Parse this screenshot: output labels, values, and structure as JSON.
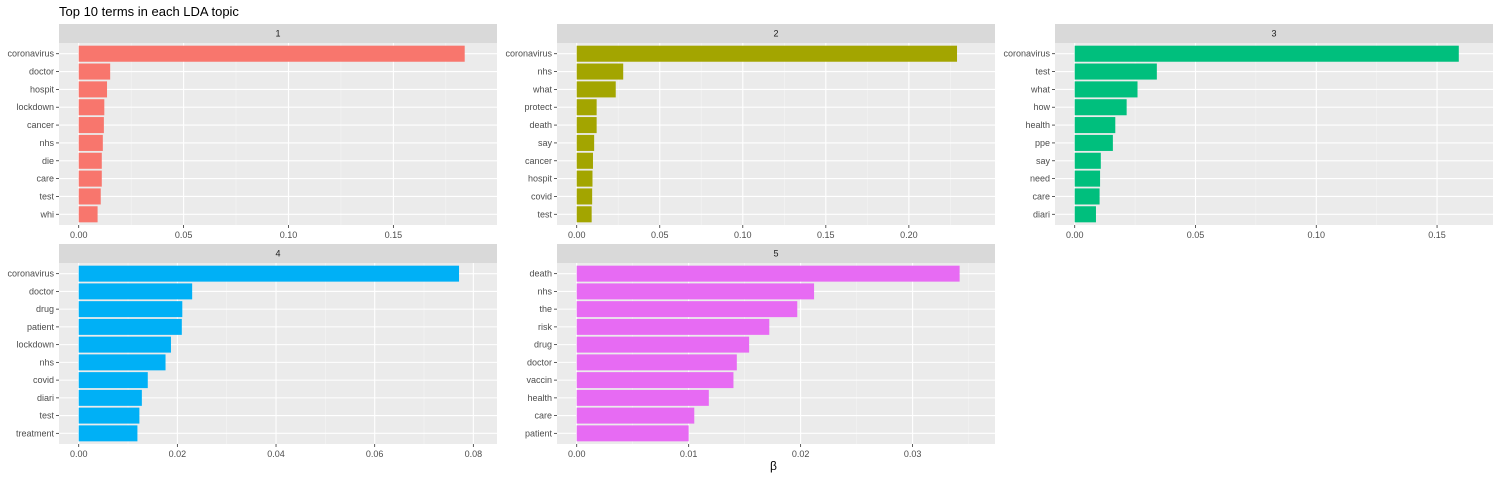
{
  "title": "Top 10 terms in each LDA topic",
  "xlabel": "β",
  "chart_data": [
    {
      "type": "bar",
      "facet": "1",
      "color": "#F8766D",
      "xlim": [
        0,
        0.19
      ],
      "xticks": [
        0.0,
        0.05,
        0.1,
        0.15
      ],
      "xtick_labels": [
        "0.00",
        "0.05",
        "0.10",
        "0.15"
      ],
      "categories": [
        "coronavirus",
        "doctor",
        "hospit",
        "lockdown",
        "cancer",
        "nhs",
        "die",
        "care",
        "test",
        "whi"
      ],
      "values": [
        0.184,
        0.015,
        0.0135,
        0.0122,
        0.012,
        0.0115,
        0.011,
        0.011,
        0.0105,
        0.009
      ]
    },
    {
      "type": "bar",
      "facet": "2",
      "color": "#A3A500",
      "xlim": [
        0,
        0.24
      ],
      "xticks": [
        0.0,
        0.05,
        0.1,
        0.15,
        0.2
      ],
      "xtick_labels": [
        "0.00",
        "0.05",
        "0.10",
        "0.15",
        "0.20"
      ],
      "categories": [
        "coronavirus",
        "nhs",
        "what",
        "protect",
        "death",
        "say",
        "cancer",
        "hospit",
        "covid",
        "test"
      ],
      "values": [
        0.229,
        0.028,
        0.0235,
        0.012,
        0.012,
        0.0105,
        0.0098,
        0.0095,
        0.0093,
        0.009
      ]
    },
    {
      "type": "bar",
      "facet": "3",
      "color": "#00BF7D",
      "xlim": [
        0,
        0.165
      ],
      "xticks": [
        0.0,
        0.05,
        0.1,
        0.15
      ],
      "xtick_labels": [
        "0.00",
        "0.05",
        "0.10",
        "0.15"
      ],
      "categories": [
        "coronavirus",
        "test",
        "what",
        "how",
        "health",
        "ppe",
        "say",
        "need",
        "care",
        "diari"
      ],
      "values": [
        0.159,
        0.034,
        0.026,
        0.0215,
        0.0168,
        0.0158,
        0.0108,
        0.0105,
        0.0103,
        0.0088
      ]
    },
    {
      "type": "bar",
      "facet": "4",
      "color": "#00B0F6",
      "xlim": [
        0,
        0.0808
      ],
      "xticks": [
        0.0,
        0.02,
        0.04,
        0.06,
        0.08
      ],
      "xtick_labels": [
        "0.00",
        "0.02",
        "0.04",
        "0.06",
        "0.08"
      ],
      "categories": [
        "coronavirus",
        "doctor",
        "drug",
        "patient",
        "lockdown",
        "nhs",
        "covid",
        "diari",
        "test",
        "treatment"
      ],
      "values": [
        0.0771,
        0.023,
        0.021,
        0.0209,
        0.0187,
        0.0176,
        0.014,
        0.0128,
        0.0123,
        0.0119
      ]
    },
    {
      "type": "bar",
      "facet": "5",
      "color": "#E76BF3",
      "xlim": [
        0,
        0.0356
      ],
      "xticks": [
        0.0,
        0.01,
        0.02,
        0.03
      ],
      "xtick_labels": [
        "0.00",
        "0.01",
        "0.02",
        "0.03"
      ],
      "categories": [
        "death",
        "nhs",
        "the",
        "risk",
        "drug",
        "doctor",
        "vaccin",
        "health",
        "care",
        "patient"
      ],
      "values": [
        0.0342,
        0.0212,
        0.0197,
        0.0172,
        0.0154,
        0.0143,
        0.014,
        0.0118,
        0.0105,
        0.01
      ]
    }
  ]
}
